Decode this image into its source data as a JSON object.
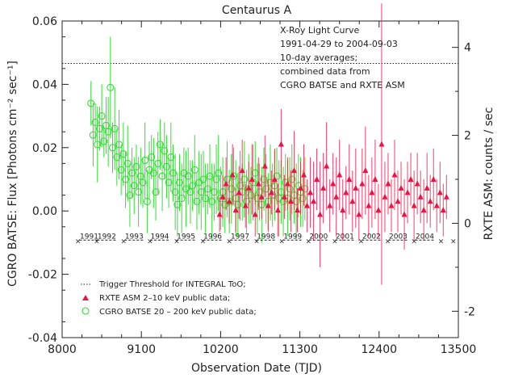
{
  "chart_data": {
    "type": "scatter",
    "title": "Centaurus A",
    "xlabel": "Observation Date (TJD)",
    "ylabel_left": "CGRO BATSE: Flux [Photons cm⁻² sec⁻¹]",
    "ylabel_right": "RXTE ASM:  counts / sec",
    "xlim": [
      8000,
      13500
    ],
    "ylim_left": [
      -0.04,
      0.06
    ],
    "ylim_right": [
      -2.6,
      4.6
    ],
    "x_ticks": [
      "8000",
      "9100",
      "10200",
      "11300",
      "12400",
      "13500"
    ],
    "y_ticks_left": [
      "-0.04",
      "-0.02",
      "0.00",
      "0.02",
      "0.04",
      "0.06"
    ],
    "y_ticks_right": [
      "-2",
      "0",
      "2",
      "4"
    ],
    "grid": false,
    "annotation": [
      "X-Roy Light Curve",
      "1991-04-29 to 2004-09-03",
      "10-day averages;",
      "combined data from",
      "CGRO BATSE and RXTE ASM"
    ],
    "trigger_threshold": 0.0466,
    "year_marker_y": -0.0092,
    "year_markers": [
      {
        "label": "1991",
        "tjd": 8375
      },
      {
        "label": "1992",
        "tjd": 8620
      },
      {
        "label": "1993",
        "tjd": 9000
      },
      {
        "label": "1994",
        "tjd": 9355
      },
      {
        "label": "1995",
        "tjd": 9720
      },
      {
        "label": "1996",
        "tjd": 10090
      },
      {
        "label": "1997",
        "tjd": 10470
      },
      {
        "label": "1998",
        "tjd": 10830
      },
      {
        "label": "1999",
        "tjd": 11200
      },
      {
        "label": "2000",
        "tjd": 11560
      },
      {
        "label": "2001",
        "tjd": 11925
      },
      {
        "label": "2002",
        "tjd": 12295
      },
      {
        "label": "2003",
        "tjd": 12665
      },
      {
        "label": "2004",
        "tjd": 13035
      }
    ],
    "year_cross_tjd": [
      8220,
      8480,
      8855,
      9220,
      9590,
      9955,
      10320,
      10700,
      11050,
      11420,
      11785,
      12150,
      12520,
      12885,
      13260,
      13430
    ],
    "legend": [
      {
        "label": "Trigger Threshold for INTEGRAL ToO;",
        "marker": "dotted-line"
      },
      {
        "label": "RXTE ASM 2–10 keV public data;",
        "marker": "triangle"
      },
      {
        "label": "CGRO BATSE 20 – 200 keV public data;",
        "marker": "circle"
      }
    ],
    "series": [
      {
        "name": "CGRO BATSE 20 – 200 keV public data;",
        "axis": "left",
        "color": "#33dd33",
        "x": [
          8400,
          8430,
          8460,
          8490,
          8520,
          8550,
          8580,
          8610,
          8640,
          8670,
          8700,
          8730,
          8760,
          8790,
          8820,
          8850,
          8880,
          8910,
          8940,
          8970,
          9000,
          9030,
          9060,
          9090,
          9120,
          9150,
          9180,
          9210,
          9240,
          9270,
          9300,
          9330,
          9360,
          9390,
          9420,
          9450,
          9480,
          9510,
          9540,
          9570,
          9600,
          9630,
          9660,
          9690,
          9720,
          9750,
          9780,
          9810,
          9840,
          9870,
          9900,
          9930,
          9960,
          9990,
          10020,
          10050,
          10080,
          10110,
          10140,
          10170,
          10200,
          10230,
          10260,
          10290,
          10320,
          10350,
          10380,
          10410,
          10440,
          10470,
          10500,
          10530,
          10560,
          10590,
          10620,
          10650,
          10680,
          10710,
          10740,
          10770,
          10800,
          10830,
          10860,
          10890,
          10920,
          10950,
          10980,
          11010,
          11040,
          11070,
          11100,
          11130,
          11160,
          11190,
          11220,
          11250,
          11280,
          11310,
          11340,
          11370
        ],
        "y": [
          0.034,
          0.024,
          0.028,
          0.021,
          0.026,
          0.03,
          0.022,
          0.027,
          0.025,
          0.039,
          0.02,
          0.026,
          0.017,
          0.021,
          0.013,
          0.018,
          0.01,
          0.015,
          0.005,
          0.012,
          0.008,
          0.014,
          0.006,
          0.011,
          0.009,
          0.016,
          0.003,
          0.013,
          0.017,
          0.012,
          0.006,
          0.015,
          0.021,
          0.011,
          0.019,
          0.014,
          0.009,
          0.017,
          0.012,
          0.006,
          0.002,
          0.009,
          0.004,
          0.012,
          0.007,
          0.011,
          0.006,
          0.008,
          0.013,
          0.003,
          0.009,
          0.006,
          0.01,
          0.004,
          0.007,
          0.011,
          0.003,
          0.006,
          0.01,
          0.012,
          0.004,
          0.006,
          0.002,
          0.01,
          0.003,
          0.007,
          0.011,
          0.004,
          0.002,
          0.008,
          0.006,
          0.01,
          0.003,
          0.007,
          0.005,
          0.009,
          0.012,
          0.004,
          0.006,
          0.002,
          0.01,
          0.007,
          0.003,
          0.009,
          0.005,
          0.008,
          0.011,
          0.004,
          0.006,
          0.003,
          0.009,
          0.004,
          0.007,
          0.01,
          0.005,
          0.003,
          0.008,
          0.006,
          0.004,
          0.007
        ],
        "err": [
          0.007,
          0.01,
          0.006,
          0.012,
          0.007,
          0.01,
          0.005,
          0.009,
          0.011,
          0.016,
          0.008,
          0.013,
          0.009,
          0.011,
          0.008,
          0.01,
          0.009,
          0.012,
          0.01,
          0.008,
          0.009,
          0.007,
          0.011,
          0.009,
          0.008,
          0.012,
          0.01,
          0.009,
          0.007,
          0.011,
          0.009,
          0.01,
          0.008,
          0.011,
          0.009,
          0.01,
          0.008,
          0.011,
          0.009,
          0.012,
          0.01,
          0.009,
          0.011,
          0.008,
          0.012,
          0.009,
          0.01,
          0.008,
          0.011,
          0.009,
          0.01,
          0.012,
          0.009,
          0.011,
          0.008,
          0.01,
          0.012,
          0.009,
          0.011,
          0.012,
          0.01,
          0.011,
          0.009,
          0.012,
          0.01,
          0.011,
          0.009,
          0.012,
          0.01,
          0.011,
          0.009,
          0.012,
          0.01,
          0.011,
          0.009,
          0.012,
          0.01,
          0.011,
          0.009,
          0.012,
          0.01,
          0.011,
          0.009,
          0.012,
          0.01,
          0.011,
          0.009,
          0.012,
          0.01,
          0.011,
          0.009,
          0.012,
          0.01,
          0.011,
          0.009,
          0.012,
          0.01,
          0.011,
          0.009,
          0.01
        ]
      },
      {
        "name": "RXTE ASM 2–10 keV public data;",
        "axis": "right",
        "color": "#ee1144",
        "x": [
          10185,
          10230,
          10275,
          10320,
          10365,
          10410,
          10455,
          10500,
          10545,
          10590,
          10635,
          10680,
          10725,
          10770,
          10815,
          10860,
          10905,
          10950,
          10995,
          11040,
          11085,
          11130,
          11175,
          11220,
          11265,
          11310,
          11355,
          11400,
          11445,
          11490,
          11535,
          11580,
          11625,
          11670,
          11715,
          11760,
          11805,
          11850,
          11895,
          11940,
          11985,
          12030,
          12075,
          12120,
          12165,
          12210,
          12255,
          12300,
          12345,
          12390,
          12435,
          12480,
          12525,
          12570,
          12615,
          12660,
          12705,
          12750,
          12795,
          12840,
          12885,
          12930,
          12975,
          13020,
          13065,
          13110,
          13155,
          13200,
          13245,
          13290,
          13335
        ],
        "y": [
          0.2,
          0.6,
          0.9,
          0.5,
          1.1,
          0.3,
          0.7,
          1.2,
          0.4,
          0.8,
          1.0,
          0.2,
          0.9,
          0.6,
          1.3,
          0.4,
          0.7,
          1.0,
          0.3,
          1.8,
          0.6,
          0.9,
          0.5,
          1.2,
          0.3,
          0.8,
          1.1,
          0.4,
          0.7,
          0.5,
          1.0,
          0.2,
          0.8,
          1.3,
          0.4,
          0.9,
          0.6,
          1.1,
          0.3,
          0.7,
          1.0,
          0.5,
          0.8,
          0.2,
          0.9,
          1.2,
          0.4,
          0.7,
          1.0,
          0.3,
          1.8,
          0.6,
          0.9,
          0.4,
          1.1,
          0.5,
          0.8,
          0.2,
          0.7,
          1.0,
          0.4,
          0.9,
          0.6,
          0.3,
          0.8,
          0.5,
          1.0,
          0.4,
          0.7,
          0.3,
          0.6
        ],
        "err": [
          0.4,
          0.5,
          0.6,
          0.5,
          0.7,
          0.5,
          0.6,
          0.7,
          0.5,
          0.6,
          0.8,
          0.5,
          0.6,
          0.5,
          0.7,
          0.6,
          0.5,
          0.7,
          0.6,
          0.8,
          0.5,
          0.6,
          0.7,
          0.9,
          0.5,
          0.6,
          0.7,
          0.6,
          0.8,
          0.9,
          0.7,
          1.2,
          0.8,
          1.0,
          0.6,
          0.7,
          0.9,
          0.8,
          0.7,
          0.6,
          0.8,
          0.7,
          0.9,
          0.6,
          0.8,
          1.0,
          0.7,
          0.8,
          0.9,
          0.6,
          3.2,
          0.8,
          0.7,
          0.6,
          0.8,
          0.7,
          0.6,
          0.8,
          0.7,
          0.6,
          0.8,
          0.7,
          0.6,
          0.7,
          0.8,
          0.6,
          0.7,
          0.6,
          0.7,
          0.6,
          0.5
        ]
      }
    ]
  }
}
